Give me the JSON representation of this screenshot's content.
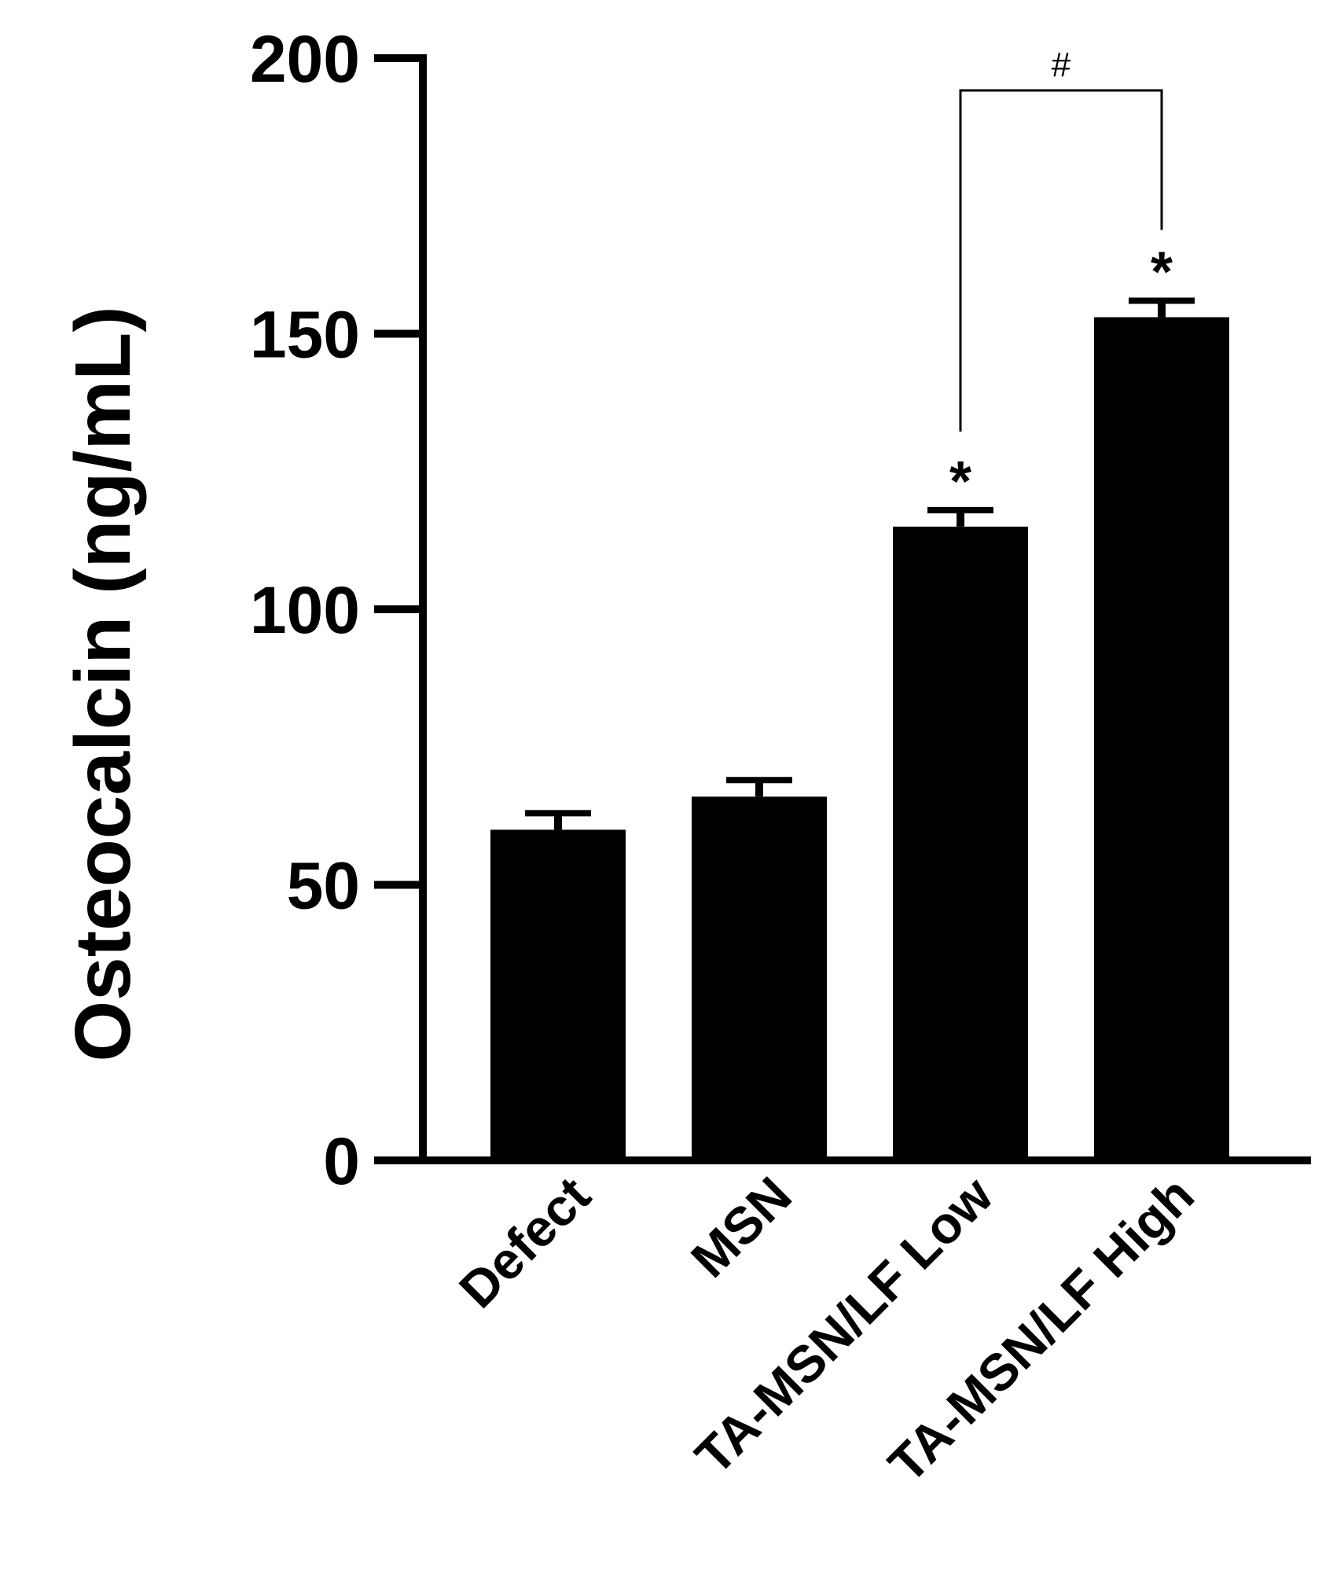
{
  "chart_data": {
    "type": "bar",
    "ylabel": "Osteocalcin (ng/mL)",
    "xlabel": "",
    "ylim": [
      0,
      200
    ],
    "yticks": [
      0,
      50,
      100,
      150,
      200
    ],
    "categories": [
      "Defect",
      "MSN",
      "TA-MSN/LF Low",
      "TA-MSN/LF High"
    ],
    "values": [
      60,
      66,
      115,
      153
    ],
    "errors": [
      3,
      3,
      3,
      3
    ],
    "annotations": [
      "",
      "",
      "*",
      "*"
    ],
    "comparison": {
      "between": [
        2,
        3
      ],
      "label": "#"
    },
    "bar_color": "#000000",
    "grid": false,
    "legend": "none"
  }
}
